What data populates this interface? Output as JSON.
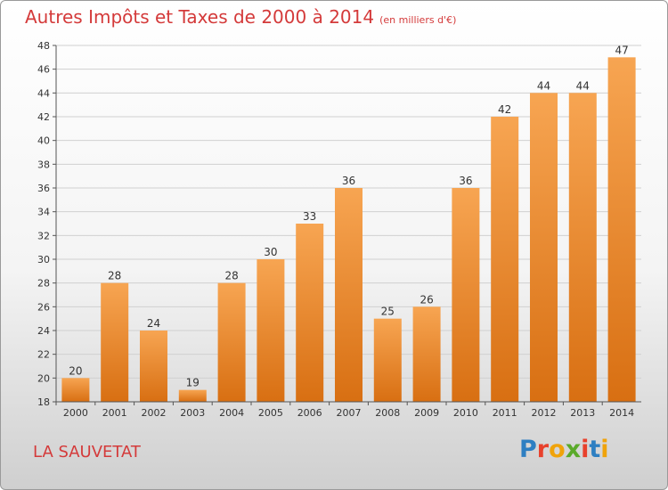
{
  "header": {
    "title": "Autres Impôts et Taxes de 2000 à 2014",
    "unit": "(en milliers d'€)"
  },
  "footer": {
    "commune": "LA SAUVETAT",
    "logo_text": "Proxiti",
    "logo_colors": [
      "#2e7fc2",
      "#e8412c",
      "#f0a30a",
      "#5aaa2a",
      "#e8412c",
      "#2e7fc2",
      "#f0a30a"
    ]
  },
  "colors": {
    "bar_light": "#f7a552",
    "bar_dark": "#d86f12",
    "grid": "#d0d0d0",
    "axis": "#555555"
  },
  "chart_data": {
    "type": "bar",
    "title": "Autres Impôts et Taxes de 2000 à 2014",
    "subtitle": "(en milliers d'€)",
    "categories": [
      "2000",
      "2001",
      "2002",
      "2003",
      "2004",
      "2005",
      "2006",
      "2007",
      "2008",
      "2009",
      "2010",
      "2011",
      "2012",
      "2013",
      "2014"
    ],
    "values": [
      20,
      28,
      24,
      19,
      28,
      30,
      33,
      36,
      25,
      26,
      36,
      42,
      44,
      44,
      47
    ],
    "ylim": [
      18,
      48
    ],
    "yticks": [
      18,
      20,
      22,
      24,
      26,
      28,
      30,
      32,
      34,
      36,
      38,
      40,
      42,
      44,
      46,
      48
    ],
    "grid": true,
    "xlabel": "",
    "ylabel": ""
  }
}
